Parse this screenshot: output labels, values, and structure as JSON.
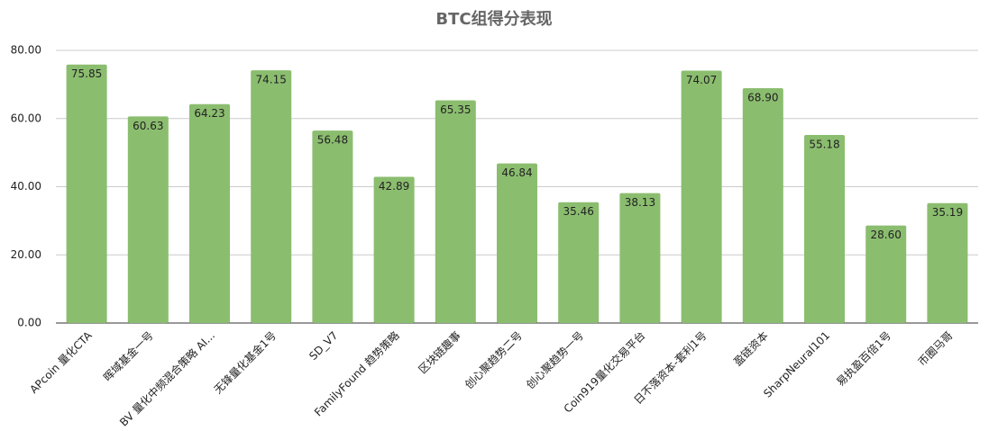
{
  "chart_data": {
    "type": "bar",
    "title": "BTC组得分表现",
    "categories": [
      "APcoin 量化CTA",
      "晖域基金一号",
      "BV 量化中频混合策略 AI...",
      "无锋量化基金1号",
      "SD_V7",
      "FamilyFound 趋势策略",
      "区块链趣事",
      "创心聚趋势二号",
      "创心聚趋势一号",
      "Coin919量化交易平台",
      "日不落资本-套利1号",
      "盈链资本",
      "SharpNeural101",
      "易执盈百倍1号",
      "币圈马哥"
    ],
    "values": [
      75.85,
      60.63,
      64.23,
      74.15,
      56.48,
      42.89,
      65.35,
      46.84,
      35.46,
      38.13,
      74.07,
      68.9,
      55.18,
      28.6,
      35.19
    ],
    "value_labels": [
      "75.85",
      "60.63",
      "64.23",
      "74.15",
      "56.48",
      "42.89",
      "65.35",
      "46.84",
      "35.46",
      "38.13",
      "74.07",
      "68.90",
      "55.18",
      "28.60",
      "35.19"
    ],
    "color": "#8bbd6f",
    "ylim": [
      0,
      80
    ],
    "yticks": [
      {
        "value": 0,
        "label": "0.00"
      },
      {
        "value": 20,
        "label": "20.00"
      },
      {
        "value": 40,
        "label": "40.00"
      },
      {
        "value": 60,
        "label": "60.00"
      },
      {
        "value": 80,
        "label": "80.00"
      }
    ],
    "grid": true
  }
}
